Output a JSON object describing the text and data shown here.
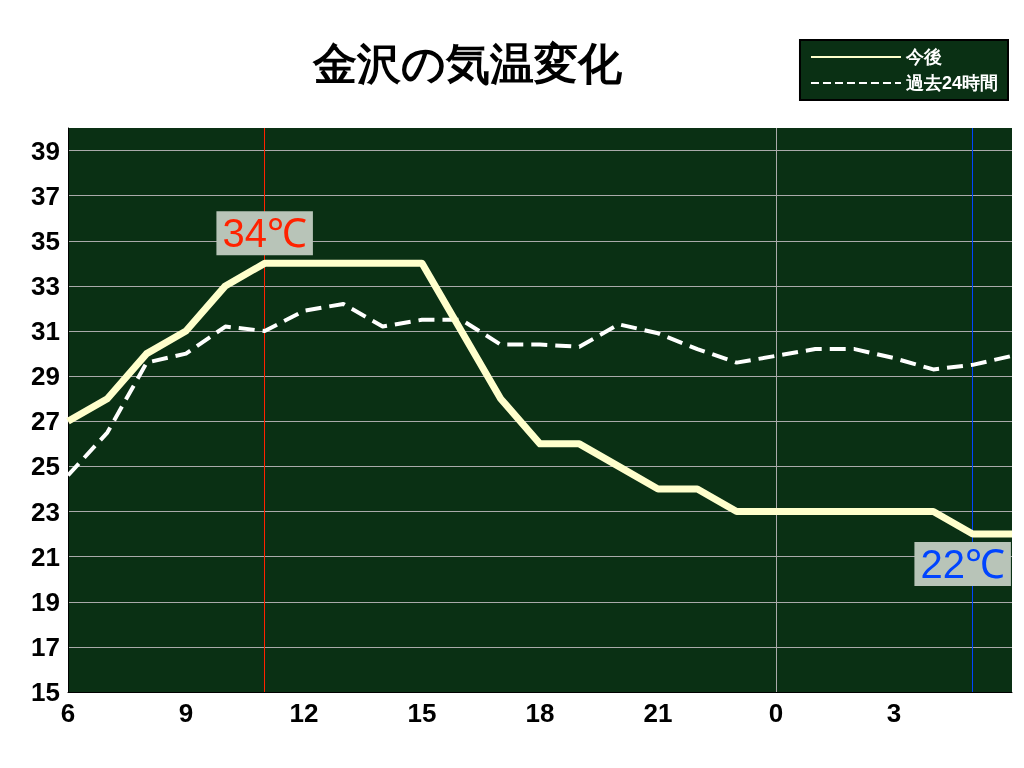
{
  "chart_data": {
    "type": "line",
    "title": "金沢の気温変化",
    "categories": [
      "6",
      null,
      null,
      "9",
      null,
      null,
      "12",
      null,
      null,
      "15",
      null,
      null,
      "18",
      null,
      null,
      "21",
      null,
      null,
      "0",
      null,
      null,
      "3",
      null,
      null,
      null
    ],
    "series": [
      {
        "name": "今後",
        "color": "#ffffcc",
        "line_style": "solid",
        "values": [
          27,
          28,
          30,
          31,
          33,
          34,
          34,
          34,
          34,
          34,
          31,
          28,
          26,
          26,
          25,
          24,
          24,
          23,
          23,
          23,
          23,
          23,
          23,
          22,
          22
        ]
      },
      {
        "name": "過去24時間",
        "color": "#ffffff",
        "line_style": "dashed",
        "values": [
          24.6,
          26.5,
          29.6,
          30,
          31.2,
          31,
          31.9,
          32.2,
          31.2,
          31.5,
          31.5,
          30.4,
          30.4,
          30.3,
          31.3,
          30.9,
          30.2,
          29.6,
          29.9,
          30.2,
          30.2,
          29.8,
          29.3,
          29.5,
          29.9
        ]
      }
    ],
    "ylim": [
      15,
      40
    ],
    "yticks": [
      15,
      17,
      19,
      21,
      23,
      25,
      27,
      29,
      31,
      33,
      35,
      37,
      39
    ],
    "grid": "y",
    "legend": "top right",
    "marker": "none",
    "ref_lines": [
      {
        "axis": "x",
        "value": "0",
        "color": "#aaaaaa"
      }
    ],
    "annotations": [
      {
        "text": "34℃",
        "y": 34
      },
      {
        "text": "22℃",
        "y": 22
      }
    ]
  }
}
